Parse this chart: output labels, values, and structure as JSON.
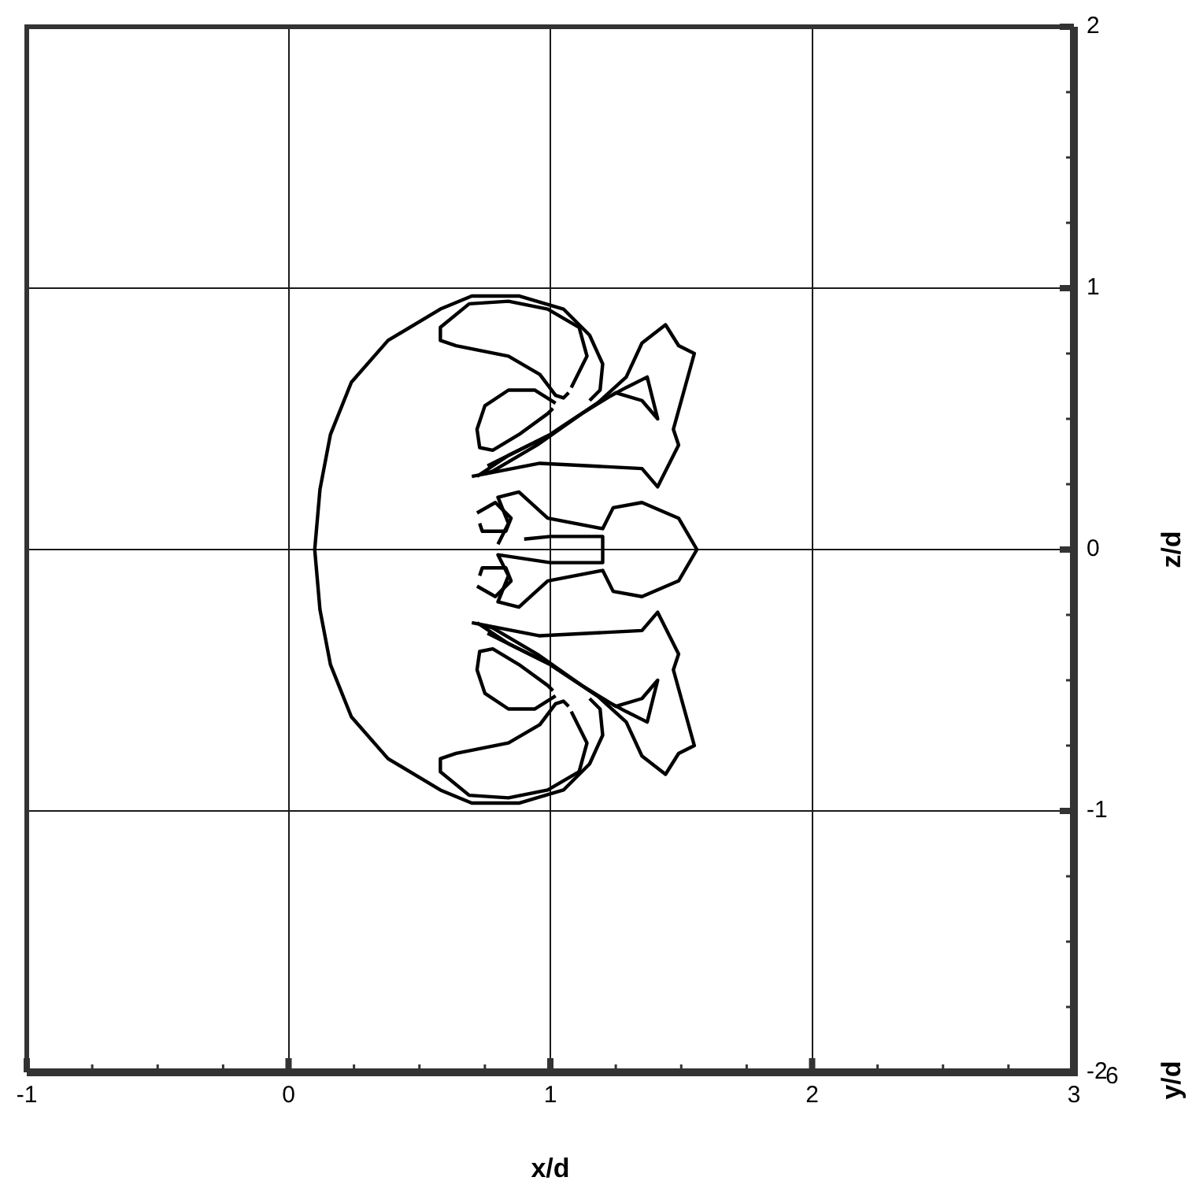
{
  "chart_data": {
    "type": "line",
    "xlabel": "x/d",
    "ylabel": "z/d",
    "xlim": [
      -1,
      3
    ],
    "xticks": [
      -1,
      0,
      1,
      2,
      3
    ],
    "ylim": [
      -2,
      2
    ],
    "yticks": [
      -2,
      -1,
      0,
      1,
      2
    ],
    "grid": true,
    "legend": false,
    "marker": "none",
    "annotations": [
      "y/d",
      "6"
    ],
    "series": [
      {
        "color": "#000000",
        "x": [
          1.15,
          1.19,
          1.2,
          1.15,
          1.05,
          0.88,
          0.7,
          0.58,
          0.38,
          0.24,
          0.16,
          0.12,
          0.1,
          0.12,
          0.16,
          0.24,
          0.38,
          0.58,
          0.7,
          0.88,
          1.05,
          1.15,
          1.2,
          1.19,
          1.15
        ],
        "values": [
          0.57,
          0.61,
          0.71,
          0.82,
          0.92,
          0.97,
          0.97,
          0.92,
          0.8,
          0.64,
          0.44,
          0.23,
          0,
          -0.23,
          -0.44,
          -0.64,
          -0.8,
          -0.92,
          -0.97,
          -0.97,
          -0.92,
          -0.82,
          -0.71,
          -0.61,
          -0.57
        ]
      },
      {
        "color": "#000000",
        "x": [
          1.08,
          1.14,
          1.11,
          0.99,
          0.84,
          0.69,
          0.58,
          0.58,
          0.64,
          0.84,
          0.96,
          1.02,
          1.05,
          1.07
        ],
        "values": [
          0.62,
          0.74,
          0.85,
          0.92,
          0.95,
          0.94,
          0.85,
          0.8,
          0.78,
          0.74,
          0.67,
          0.59,
          0.58,
          0.6
        ]
      },
      {
        "color": "#000000",
        "x": [
          1.08,
          1.14,
          1.11,
          0.99,
          0.84,
          0.69,
          0.58,
          0.58,
          0.64,
          0.84,
          0.96,
          1.02,
          1.05,
          1.07
        ],
        "values": [
          -0.62,
          -0.74,
          -0.85,
          -0.92,
          -0.95,
          -0.94,
          -0.85,
          -0.8,
          -0.78,
          -0.74,
          -0.67,
          -0.59,
          -0.58,
          -0.6
        ]
      },
      {
        "color": "#000000",
        "x": [
          1.02,
          0.94,
          0.84,
          0.75,
          0.72,
          0.73,
          0.78,
          0.88,
          0.99,
          1.01
        ],
        "values": [
          0.56,
          0.61,
          0.61,
          0.55,
          0.46,
          0.39,
          0.38,
          0.44,
          0.52,
          0.54
        ]
      },
      {
        "color": "#000000",
        "x": [
          1.02,
          0.94,
          0.84,
          0.75,
          0.72,
          0.73,
          0.78,
          0.88,
          0.99,
          1.01
        ],
        "values": [
          -0.56,
          -0.61,
          -0.61,
          -0.55,
          -0.46,
          -0.39,
          -0.38,
          -0.44,
          -0.52,
          -0.54
        ]
      },
      {
        "color": "#000000",
        "x": [
          0.72,
          0.84,
          1.0,
          1.18,
          1.29,
          1.37,
          1.39,
          1.41,
          1.35,
          1.25,
          1.12,
          0.95,
          0.78,
          0.75
        ],
        "values": [
          0.28,
          0.36,
          0.44,
          0.56,
          0.62,
          0.66,
          0.58,
          0.5,
          0.57,
          0.6,
          0.52,
          0.4,
          0.3,
          0.29
        ]
      },
      {
        "color": "#000000",
        "x": [
          0.72,
          0.84,
          1.0,
          1.18,
          1.29,
          1.37,
          1.39,
          1.41,
          1.35,
          1.25,
          1.12,
          0.95,
          0.78,
          0.75
        ],
        "values": [
          -0.28,
          -0.36,
          -0.44,
          -0.56,
          -0.62,
          -0.66,
          -0.58,
          -0.5,
          -0.57,
          -0.6,
          -0.52,
          -0.4,
          -0.3,
          -0.29
        ]
      },
      {
        "color": "#000000",
        "x": [
          0.7,
          0.96,
          1.35,
          1.41,
          1.49,
          1.47,
          1.55,
          1.49,
          1.44,
          1.35,
          1.29,
          1.18,
          1.0,
          0.82,
          0.76
        ],
        "values": [
          0.28,
          0.33,
          0.31,
          0.24,
          0.4,
          0.46,
          0.75,
          0.78,
          0.86,
          0.79,
          0.66,
          0.56,
          0.44,
          0.35,
          0.32
        ]
      },
      {
        "color": "#000000",
        "x": [
          0.7,
          0.96,
          1.35,
          1.41,
          1.49,
          1.47,
          1.55,
          1.49,
          1.44,
          1.35,
          1.29,
          1.18,
          1.0,
          0.82,
          0.76
        ],
        "values": [
          -0.28,
          -0.33,
          -0.31,
          -0.24,
          -0.4,
          -0.46,
          -0.75,
          -0.78,
          -0.86,
          -0.79,
          -0.66,
          -0.56,
          -0.44,
          -0.35,
          -0.32
        ]
      },
      {
        "color": "#000000",
        "x": [
          0.8,
          0.84,
          0.8,
          0.88,
          0.99,
          1.2,
          1.24,
          1.35,
          1.49,
          1.56,
          1.49,
          1.35,
          1.24,
          1.2,
          0.99,
          0.88,
          0.8,
          0.84,
          0.8,
          1.0,
          1.2,
          1.2,
          1.0,
          0.9
        ],
        "values": [
          0.02,
          0.1,
          0.2,
          0.22,
          0.12,
          0.08,
          0.16,
          0.18,
          0.12,
          0,
          -0.12,
          -0.18,
          -0.16,
          -0.08,
          -0.12,
          -0.22,
          -0.2,
          -0.1,
          -0.02,
          -0.05,
          -0.05,
          0.05,
          0.05,
          0.04
        ]
      },
      {
        "color": "#000000",
        "x": [
          0.72,
          0.79,
          0.85,
          0.83,
          0.74,
          0.73
        ],
        "values": [
          0.14,
          0.18,
          0.12,
          0.07,
          0.07,
          0.1
        ]
      },
      {
        "color": "#000000",
        "x": [
          0.72,
          0.79,
          0.85,
          0.83,
          0.74,
          0.73
        ],
        "values": [
          -0.14,
          -0.18,
          -0.12,
          -0.07,
          -0.07,
          -0.1
        ]
      }
    ]
  }
}
